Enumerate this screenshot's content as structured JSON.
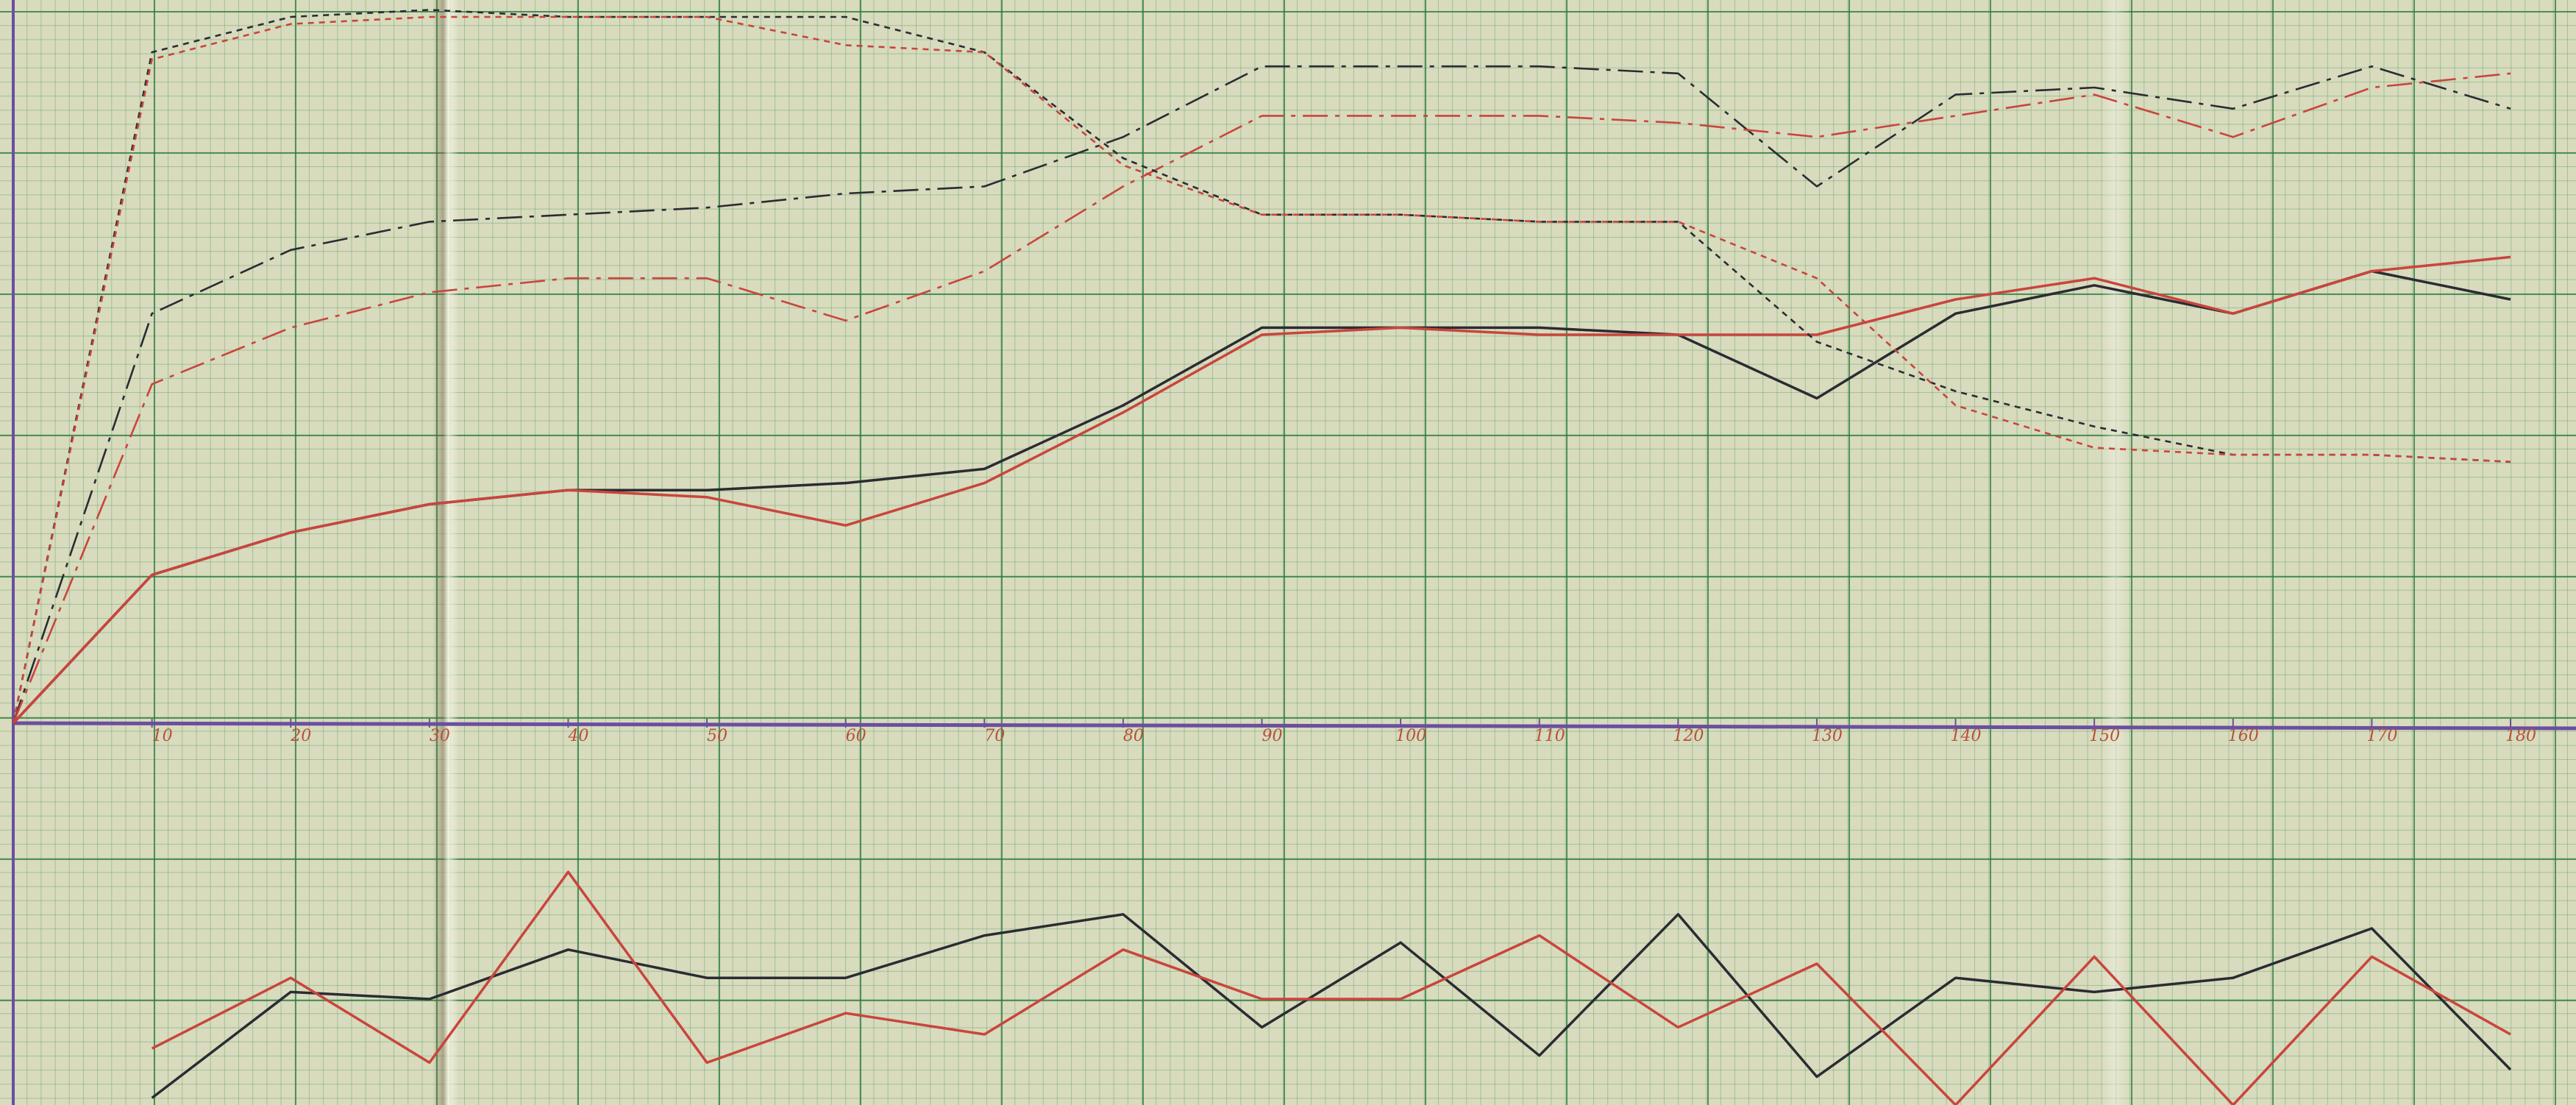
{
  "chart_data": [
    {
      "type": "line",
      "x": [
        0,
        10,
        20,
        30,
        40,
        50,
        60,
        70,
        80,
        90,
        100,
        110,
        120,
        130,
        140,
        150,
        160,
        170,
        180
      ],
      "xlim": [
        0,
        180
      ],
      "xticks": [
        10,
        20,
        30,
        40,
        50,
        60,
        70,
        80,
        90,
        100,
        110,
        120,
        130,
        140,
        150,
        160,
        170,
        180
      ],
      "ylim": [
        0,
        51
      ],
      "series": [
        {
          "color": "#2b2b33",
          "dash": "solid",
          "values": [
            0,
            10.5,
            13.5,
            15.5,
            16.5,
            16.5,
            17,
            18,
            22.5,
            28,
            28,
            28,
            27.5,
            23,
            29,
            31,
            29,
            32,
            30
          ]
        },
        {
          "color": "#c9453d",
          "dash": "solid",
          "values": [
            0,
            10.5,
            13.5,
            15.5,
            16.5,
            16,
            14,
            17,
            22,
            27.5,
            28,
            27.5,
            27.5,
            27.5,
            30,
            31.5,
            29,
            32,
            33
          ]
        },
        {
          "color": "#2b2b33",
          "dash": "dashdot",
          "values": [
            0,
            29,
            33.5,
            35.5,
            36,
            36.5,
            37.5,
            38,
            41.5,
            46.5,
            46.5,
            46.5,
            46,
            38,
            44.5,
            45,
            43.5,
            46.5,
            43.5
          ]
        },
        {
          "color": "#c9453d",
          "dash": "dashdot",
          "values": [
            0,
            24,
            28,
            30.5,
            31.5,
            31.5,
            28.5,
            32,
            38,
            43,
            43,
            43,
            42.5,
            41.5,
            43,
            44.5,
            41.5,
            45,
            46
          ]
        },
        {
          "color": "#2b2b33",
          "dash": "dotted",
          "values": [
            0,
            47.5,
            50,
            50.5,
            50,
            50,
            50,
            47.5,
            40,
            36,
            36,
            35.5,
            35.5,
            27,
            23.5,
            21,
            19,
            19,
            18.5
          ]
        },
        {
          "color": "#c9453d",
          "dash": "dotted",
          "values": [
            0,
            47,
            49.5,
            50,
            50,
            50,
            48,
            47.5,
            39.5,
            36,
            36,
            35.5,
            35.5,
            31.5,
            22.5,
            19.5,
            19,
            19,
            18.5
          ]
        }
      ]
    },
    {
      "type": "line",
      "x": [
        0,
        10,
        20,
        30,
        40,
        50,
        60,
        70,
        80,
        90,
        100,
        110,
        120,
        130,
        140,
        150,
        160,
        170,
        180
      ],
      "xlim": [
        0,
        180
      ],
      "ylim": [
        0,
        28
      ],
      "series": [
        {
          "color": "#2b2b33",
          "dash": "solid",
          "values": [
            null,
            0.5,
            8,
            7.5,
            11,
            9,
            9,
            12,
            13.5,
            5.5,
            11.5,
            3.5,
            13.5,
            2,
            9,
            8,
            9,
            12.5,
            2.5
          ]
        },
        {
          "color": "#c9453d",
          "dash": "solid",
          "values": [
            null,
            4,
            9,
            3,
            16.5,
            3,
            6.5,
            5,
            11,
            7.5,
            7.5,
            12,
            5.5,
            10,
            0,
            10.5,
            0,
            10.5,
            5
          ]
        }
      ]
    }
  ]
}
